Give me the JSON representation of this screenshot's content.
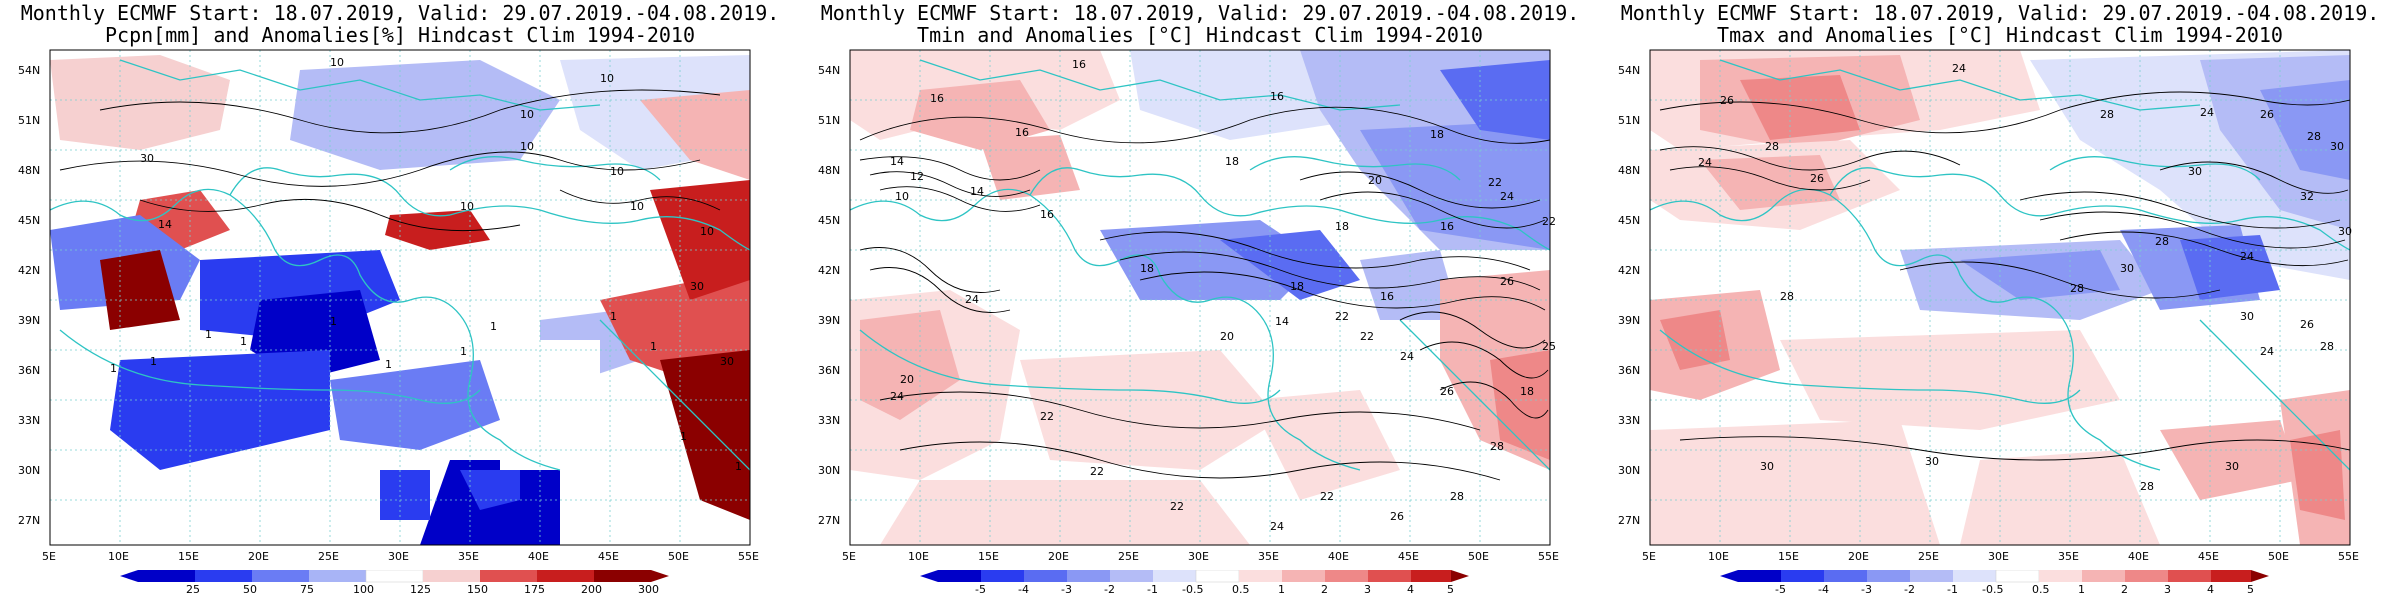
{
  "panels": [
    {
      "title_line1": "Monthly ECMWF Start: 18.07.2019, Valid: 29.07.2019.-04.08.2019.",
      "title_line2": "Pcpn[mm] and Anomalies[%] Hindcast Clim 1994-2010",
      "lat_labels": [
        "54N",
        "51N",
        "48N",
        "45N",
        "42N",
        "39N",
        "36N",
        "33N",
        "30N",
        "27N"
      ],
      "lon_labels": [
        "5E",
        "10E",
        "15E",
        "20E",
        "25E",
        "30E",
        "35E",
        "40E",
        "45E",
        "50E",
        "55E"
      ],
      "colorbar_labels": [
        "25",
        "50",
        "75",
        "100",
        "125",
        "150",
        "175",
        "200",
        "300"
      ],
      "colorbar_colors": [
        "#0000c8",
        "#2a3cf0",
        "#6a7cf4",
        "#a8b4f6",
        "#dde2fb",
        "#ffffff",
        "#f6d0d0",
        "#f0a0a0",
        "#e05050",
        "#c81e1e",
        "#8b0000"
      ],
      "contour_labels": [
        "10",
        "10",
        "10",
        "30",
        "10",
        "10",
        "14",
        "10",
        "10",
        "30",
        "10",
        "30",
        "1",
        "1",
        "1",
        "1",
        "1",
        "1",
        "1",
        "1",
        "1",
        "1",
        "1",
        "1"
      ]
    },
    {
      "title_line1": "Monthly ECMWF Start: 18.07.2019, Valid: 29.07.2019.-04.08.2019.",
      "title_line2": "Tmin and Anomalies [°C] Hindcast Clim 1994-2010",
      "lat_labels": [
        "54N",
        "51N",
        "48N",
        "45N",
        "42N",
        "39N",
        "36N",
        "33N",
        "30N",
        "27N"
      ],
      "lon_labels": [
        "5E",
        "10E",
        "15E",
        "20E",
        "25E",
        "30E",
        "35E",
        "40E",
        "45E",
        "50E",
        "55E"
      ],
      "colorbar_labels": [
        "-5",
        "-4",
        "-3",
        "-2",
        "-1",
        "-0.5",
        "0.5",
        "1",
        "2",
        "3",
        "4",
        "5"
      ],
      "colorbar_colors": [
        "#0000c8",
        "#2a3cf0",
        "#5a6cf2",
        "#8a98f4",
        "#b4bcf6",
        "#dde2fb",
        "#ffffff",
        "#fbdede",
        "#f5b4b4",
        "#ee8888",
        "#e05050",
        "#c81e1e",
        "#8b0000"
      ],
      "contour_labels": [
        "16",
        "16",
        "16",
        "16",
        "18",
        "18",
        "20",
        "22",
        "24",
        "22",
        "14",
        "12",
        "10",
        "14",
        "16",
        "18",
        "18",
        "16",
        "16",
        "18",
        "20",
        "22",
        "22",
        "24",
        "26",
        "26",
        "24",
        "20",
        "22",
        "24",
        "22",
        "22",
        "22",
        "24",
        "26",
        "28",
        "28",
        "25",
        "14",
        "18"
      ]
    },
    {
      "title_line1": "Monthly ECMWF Start: 18.07.2019, Valid: 29.07.2019.-04.08.2019.",
      "title_line2": "Tmax and Anomalies [°C] Hindcast Clim 1994-2010",
      "lat_labels": [
        "54N",
        "51N",
        "48N",
        "45N",
        "42N",
        "39N",
        "36N",
        "33N",
        "30N",
        "27N"
      ],
      "lon_labels": [
        "5E",
        "10E",
        "15E",
        "20E",
        "25E",
        "30E",
        "35E",
        "40E",
        "45E",
        "50E",
        "55E"
      ],
      "colorbar_labels": [
        "-5",
        "-4",
        "-3",
        "-2",
        "-1",
        "-0.5",
        "0.5",
        "1",
        "2",
        "3",
        "4",
        "5"
      ],
      "colorbar_colors": [
        "#0000c8",
        "#2a3cf0",
        "#5a6cf2",
        "#8a98f4",
        "#b4bcf6",
        "#dde2fb",
        "#ffffff",
        "#fbdede",
        "#f5b4b4",
        "#ee8888",
        "#e05050",
        "#c81e1e",
        "#8b0000"
      ],
      "contour_labels": [
        "24",
        "24",
        "26",
        "26",
        "24",
        "28",
        "28",
        "30",
        "26",
        "28",
        "30",
        "32",
        "30",
        "28",
        "24",
        "28",
        "30",
        "28",
        "30",
        "26",
        "28",
        "24",
        "30",
        "30",
        "28",
        "30"
      ]
    }
  ],
  "colors": {
    "coast": "#2ec4c4",
    "contour": "#000000",
    "grid": "#7ad0d0"
  }
}
